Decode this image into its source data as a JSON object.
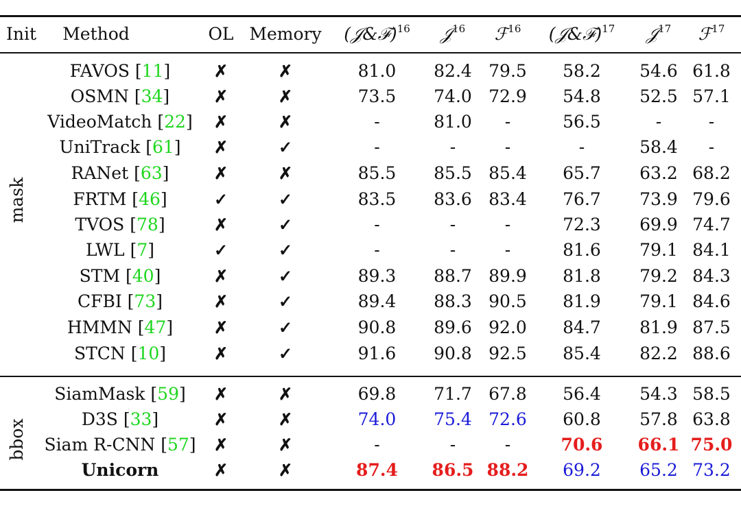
{
  "header": {
    "init": "Init",
    "method": "Method",
    "ol": "OL",
    "memory": "Memory",
    "jf16": "(𝒥&ℱ)",
    "jf16_sup": "16",
    "j16": "𝒥",
    "j16_sup": "16",
    "f16": "ℱ",
    "f16_sup": "16",
    "jf17": "(𝒥&ℱ)",
    "jf17_sup": "17",
    "j17": "𝒥",
    "j17_sup": "17",
    "f17": "ℱ",
    "f17_sup": "17"
  },
  "groups": {
    "mask": "mask",
    "bbox": "bbox"
  },
  "marks": {
    "cross": "✗",
    "check": "✓"
  },
  "rows": [
    {
      "method": "FAVOS ",
      "lb": "[",
      "ref": "11",
      "rb": "]",
      "ol": "✗",
      "mem": "✗",
      "jf16": "81.0",
      "j16": "82.4",
      "f16": "79.5",
      "jf17": "58.2",
      "j17": "54.6",
      "f17": "61.8"
    },
    {
      "method": "OSMN ",
      "lb": "[",
      "ref": "34",
      "rb": "]",
      "ol": "✗",
      "mem": "✗",
      "jf16": "73.5",
      "j16": "74.0",
      "f16": "72.9",
      "jf17": "54.8",
      "j17": "52.5",
      "f17": "57.1"
    },
    {
      "method": "VideoMatch ",
      "lb": "[",
      "ref": "22",
      "rb": "]",
      "ol": "✗",
      "mem": "✗",
      "jf16": "-",
      "j16": "81.0",
      "f16": "-",
      "jf17": "56.5",
      "j17": "-",
      "f17": "-"
    },
    {
      "method": "UniTrack ",
      "lb": "[",
      "ref": "61",
      "rb": "]",
      "ol": "✗",
      "mem": "✓",
      "jf16": "-",
      "j16": "-",
      "f16": "-",
      "jf17": "-",
      "j17": "58.4",
      "f17": "-"
    },
    {
      "method": "RANet ",
      "lb": "[",
      "ref": "63",
      "rb": "]",
      "ol": "✗",
      "mem": "✗",
      "jf16": "85.5",
      "j16": "85.5",
      "f16": "85.4",
      "jf17": "65.7",
      "j17": "63.2",
      "f17": "68.2"
    },
    {
      "method": "FRTM ",
      "lb": "[",
      "ref": "46",
      "rb": "]",
      "ol": "✓",
      "mem": "✓",
      "jf16": "83.5",
      "j16": "83.6",
      "f16": "83.4",
      "jf17": "76.7",
      "j17": "73.9",
      "f17": "79.6"
    },
    {
      "method": "TVOS ",
      "lb": "[",
      "ref": "78",
      "rb": "]",
      "ol": "✗",
      "mem": "✓",
      "jf16": "-",
      "j16": "-",
      "f16": "-",
      "jf17": "72.3",
      "j17": "69.9",
      "f17": "74.7"
    },
    {
      "method": "LWL ",
      "lb": "[",
      "ref": "7",
      "rb": "]",
      "ol": "✓",
      "mem": "✓",
      "jf16": "-",
      "j16": "-",
      "f16": "-",
      "jf17": "81.6",
      "j17": "79.1",
      "f17": "84.1"
    },
    {
      "method": "STM ",
      "lb": "[",
      "ref": "40",
      "rb": "]",
      "ol": "✗",
      "mem": "✓",
      "jf16": "89.3",
      "j16": "88.7",
      "f16": "89.9",
      "jf17": "81.8",
      "j17": "79.2",
      "f17": "84.3"
    },
    {
      "method": "CFBI ",
      "lb": "[",
      "ref": "73",
      "rb": "]",
      "ol": "✗",
      "mem": "✓",
      "jf16": "89.4",
      "j16": "88.3",
      "f16": "90.5",
      "jf17": "81.9",
      "j17": "79.1",
      "f17": "84.6"
    },
    {
      "method": "HMMN ",
      "lb": "[",
      "ref": "47",
      "rb": "]",
      "ol": "✗",
      "mem": "✓",
      "jf16": "90.8",
      "j16": "89.6",
      "f16": "92.0",
      "jf17": "84.7",
      "j17": "81.9",
      "f17": "87.5"
    },
    {
      "method": "STCN ",
      "lb": "[",
      "ref": "10",
      "rb": "]",
      "ol": "✗",
      "mem": "✓",
      "jf16": "91.6",
      "j16": "90.8",
      "f16": "92.5",
      "jf17": "85.4",
      "j17": "82.2",
      "f17": "88.6"
    },
    {
      "method": "SiamMask ",
      "lb": "[",
      "ref": "59",
      "rb": "]",
      "ol": "✗",
      "mem": "✗",
      "jf16": "69.8",
      "j16": "71.7",
      "f16": "67.8",
      "jf17": "56.4",
      "j17": "54.3",
      "f17": "58.5"
    },
    {
      "method": "D3S ",
      "lb": "[",
      "ref": "33",
      "rb": "]",
      "ol": "✗",
      "mem": "✗",
      "jf16": "74.0",
      "j16": "75.4",
      "f16": "72.6",
      "jf17": "60.8",
      "j17": "57.8",
      "f17": "63.8"
    },
    {
      "method": "Siam R-CNN ",
      "lb": "[",
      "ref": "57",
      "rb": "]",
      "ol": "✗",
      "mem": "✗",
      "jf16": "-",
      "j16": "-",
      "f16": "-",
      "jf17": "70.6",
      "j17": "66.1",
      "f17": "75.0"
    },
    {
      "method": "Unicorn",
      "lb": "",
      "ref": "",
      "rb": "",
      "ol": "✗",
      "mem": "✗",
      "jf16": "87.4",
      "j16": "86.5",
      "f16": "88.2",
      "jf17": "69.2",
      "j17": "65.2",
      "f17": "73.2"
    }
  ],
  "highlight_colors": {
    "best": "#e51d1d",
    "second": "#1a1ad8",
    "ref": "#1dd61d"
  }
}
